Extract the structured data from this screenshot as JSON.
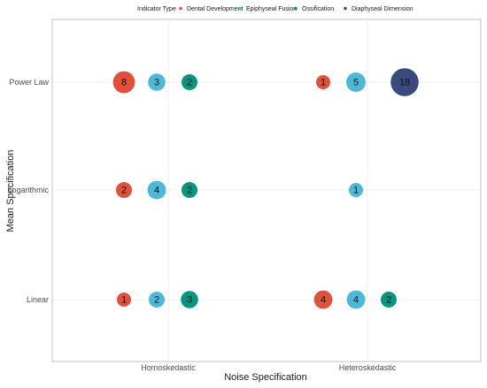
{
  "chart_data": {
    "type": "scatter",
    "xlabel": "Noise Specification",
    "ylabel": "Mean Specification",
    "x_categories": [
      "Homoskedastic",
      "Heteroskedastic"
    ],
    "y_categories": [
      "Linear",
      "Logarithmic",
      "Power Law"
    ],
    "legend": {
      "title": "Indicator Type",
      "placement": "top",
      "entries": [
        {
          "name": "Dental Development",
          "color": "#e0513a"
        },
        {
          "name": "Epiphyseal Fusion",
          "color": "#4cb9d8"
        },
        {
          "name": "Ossification",
          "color": "#06957f"
        },
        {
          "name": "Diaphyseal Dimension",
          "color": "#394b7c"
        }
      ]
    },
    "grid": true,
    "points": [
      {
        "x": "Homoskedastic",
        "y": "Power Law",
        "indicator": "Dental Development",
        "value": 8
      },
      {
        "x": "Homoskedastic",
        "y": "Power Law",
        "indicator": "Epiphyseal Fusion",
        "value": 3
      },
      {
        "x": "Homoskedastic",
        "y": "Power Law",
        "indicator": "Ossification",
        "value": 2
      },
      {
        "x": "Heteroskedastic",
        "y": "Power Law",
        "indicator": "Dental Development",
        "value": 1
      },
      {
        "x": "Heteroskedastic",
        "y": "Power Law",
        "indicator": "Epiphyseal Fusion",
        "value": 5
      },
      {
        "x": "Heteroskedastic",
        "y": "Power Law",
        "indicator": "Diaphyseal Dimension",
        "value": 18
      },
      {
        "x": "Homoskedastic",
        "y": "Logarithmic",
        "indicator": "Dental Development",
        "value": 2
      },
      {
        "x": "Homoskedastic",
        "y": "Logarithmic",
        "indicator": "Epiphyseal Fusion",
        "value": 4
      },
      {
        "x": "Homoskedastic",
        "y": "Logarithmic",
        "indicator": "Ossification",
        "value": 2
      },
      {
        "x": "Heteroskedastic",
        "y": "Logarithmic",
        "indicator": "Epiphyseal Fusion",
        "value": 1
      },
      {
        "x": "Homoskedastic",
        "y": "Linear",
        "indicator": "Dental Development",
        "value": 1
      },
      {
        "x": "Homoskedastic",
        "y": "Linear",
        "indicator": "Epiphyseal Fusion",
        "value": 2
      },
      {
        "x": "Homoskedastic",
        "y": "Linear",
        "indicator": "Ossification",
        "value": 3
      },
      {
        "x": "Heteroskedastic",
        "y": "Linear",
        "indicator": "Dental Development",
        "value": 4
      },
      {
        "x": "Heteroskedastic",
        "y": "Linear",
        "indicator": "Epiphyseal Fusion",
        "value": 4
      },
      {
        "x": "Heteroskedastic",
        "y": "Linear",
        "indicator": "Ossification",
        "value": 2
      }
    ]
  }
}
